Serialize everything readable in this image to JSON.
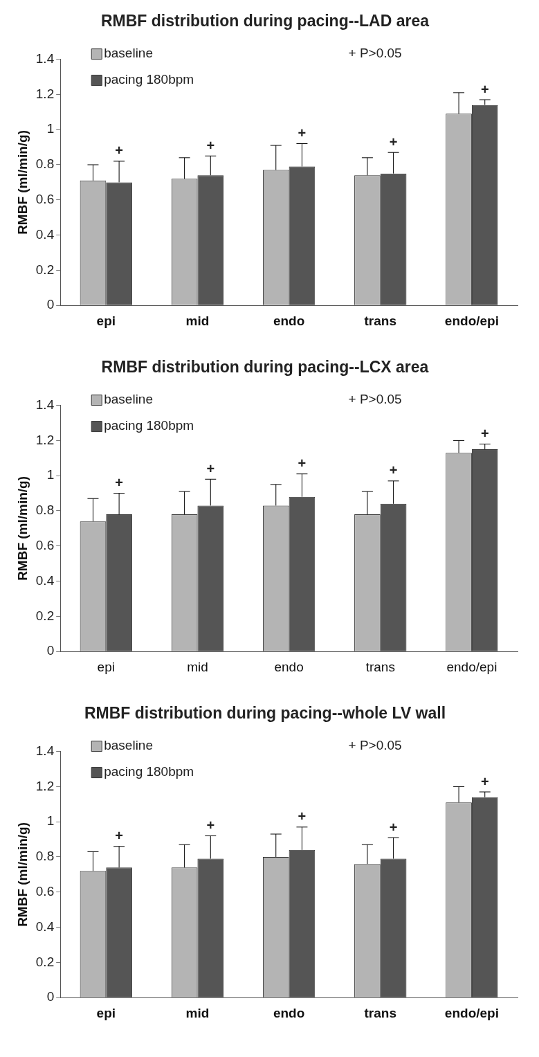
{
  "chart_data": [
    {
      "type": "bar",
      "title": "RMBF distribution during pacing--LAD area",
      "ylabel": "RMBF (ml/min/g)",
      "categories": [
        "epi",
        "mid",
        "endo",
        "trans",
        "endo/epi"
      ],
      "ylim": [
        0,
        1.4
      ],
      "yticks": [
        0,
        0.2,
        0.4,
        0.6,
        0.8,
        1,
        1.2,
        1.4
      ],
      "grid": false,
      "legend": "top left",
      "series": [
        {
          "name": "baseline",
          "color": "#b4b4b4",
          "values": [
            0.71,
            0.72,
            0.77,
            0.74,
            1.09
          ],
          "errors": [
            [
              0.71,
              0.8
            ],
            [
              0.72,
              0.84
            ],
            [
              0.77,
              0.91
            ],
            [
              0.74,
              0.84
            ],
            [
              1.09,
              1.21
            ]
          ]
        },
        {
          "name": "pacing 180bpm",
          "color": "#555555",
          "values": [
            0.7,
            0.74,
            0.79,
            0.75,
            1.14
          ],
          "errors": [
            [
              0.7,
              0.82
            ],
            [
              0.74,
              0.85
            ],
            [
              0.79,
              0.92
            ],
            [
              0.75,
              0.87
            ],
            [
              1.14,
              1.17
            ]
          ]
        }
      ],
      "annotations": [
        "+ P>0.05",
        {
          "text": "+",
          "x": "epi",
          "y": 0.7
        },
        {
          "text": "+",
          "x": "mid",
          "y": 0.74
        },
        {
          "text": "+",
          "x": "endo",
          "y": 0.79
        },
        {
          "text": "+",
          "x": "trans",
          "y": 0.75
        },
        {
          "text": "+",
          "x": "endo/epi",
          "y": 1.14
        }
      ]
    },
    {
      "type": "bar",
      "title": "RMBF distribution during pacing--LCX area",
      "ylabel": "RMBF (ml/min/g)",
      "categories": [
        "epi",
        "mid",
        "endo",
        "trans",
        "endo/epi"
      ],
      "ylim": [
        0,
        1.4
      ],
      "yticks": [
        0,
        0.2,
        0.4,
        0.6,
        0.8,
        1,
        1.2,
        1.4
      ],
      "grid": false,
      "legend": "top left",
      "series": [
        {
          "name": "baseline",
          "color": "#b4b4b4",
          "values": [
            0.74,
            0.78,
            0.83,
            0.78,
            1.13
          ],
          "errors": [
            [
              0.74,
              0.87
            ],
            [
              0.78,
              0.91
            ],
            [
              0.83,
              0.95
            ],
            [
              0.78,
              0.91
            ],
            [
              1.13,
              1.2
            ]
          ]
        },
        {
          "name": "pacing 180bpm",
          "color": "#555555",
          "values": [
            0.78,
            0.83,
            0.88,
            0.84,
            1.15
          ],
          "errors": [
            [
              0.78,
              0.9
            ],
            [
              0.83,
              0.98
            ],
            [
              0.88,
              1.01
            ],
            [
              0.84,
              0.97
            ],
            [
              1.15,
              1.18
            ]
          ]
        }
      ],
      "annotations": [
        "+ P>0.05",
        {
          "text": "+",
          "x": "epi",
          "y": 0.78
        },
        {
          "text": "+",
          "x": "mid",
          "y": 0.83
        },
        {
          "text": "+",
          "x": "endo",
          "y": 0.88
        },
        {
          "text": "+",
          "x": "trans",
          "y": 0.84
        },
        {
          "text": "+",
          "x": "endo/epi",
          "y": 1.15
        }
      ]
    },
    {
      "type": "bar",
      "title": "RMBF distribution during pacing--whole LV wall",
      "ylabel": "RMBF (ml/min/g)",
      "categories": [
        "epi",
        "mid",
        "endo",
        "trans",
        "endo/epi"
      ],
      "ylim": [
        0,
        1.4
      ],
      "yticks": [
        0,
        0.2,
        0.4,
        0.6,
        0.8,
        1,
        1.2,
        1.4
      ],
      "grid": false,
      "legend": "top left",
      "series": [
        {
          "name": "baseline",
          "color": "#b4b4b4",
          "values": [
            0.72,
            0.74,
            0.8,
            0.76,
            1.11
          ],
          "errors": [
            [
              0.72,
              0.83
            ],
            [
              0.74,
              0.87
            ],
            [
              0.8,
              0.93
            ],
            [
              0.76,
              0.87
            ],
            [
              1.11,
              1.2
            ]
          ]
        },
        {
          "name": "pacing 180bpm",
          "color": "#555555",
          "values": [
            0.74,
            0.79,
            0.84,
            0.79,
            1.14
          ],
          "errors": [
            [
              0.74,
              0.86
            ],
            [
              0.79,
              0.92
            ],
            [
              0.84,
              0.97
            ],
            [
              0.79,
              0.91
            ],
            [
              1.14,
              1.17
            ]
          ]
        }
      ],
      "annotations": [
        "+ P>0.05",
        {
          "text": "+",
          "x": "epi",
          "y": 0.74
        },
        {
          "text": "+",
          "x": "mid",
          "y": 0.79
        },
        {
          "text": "+",
          "x": "endo",
          "y": 0.84
        },
        {
          "text": "+",
          "x": "trans",
          "y": 0.79
        },
        {
          "text": "+",
          "x": "endo/epi",
          "y": 1.14
        }
      ]
    }
  ]
}
